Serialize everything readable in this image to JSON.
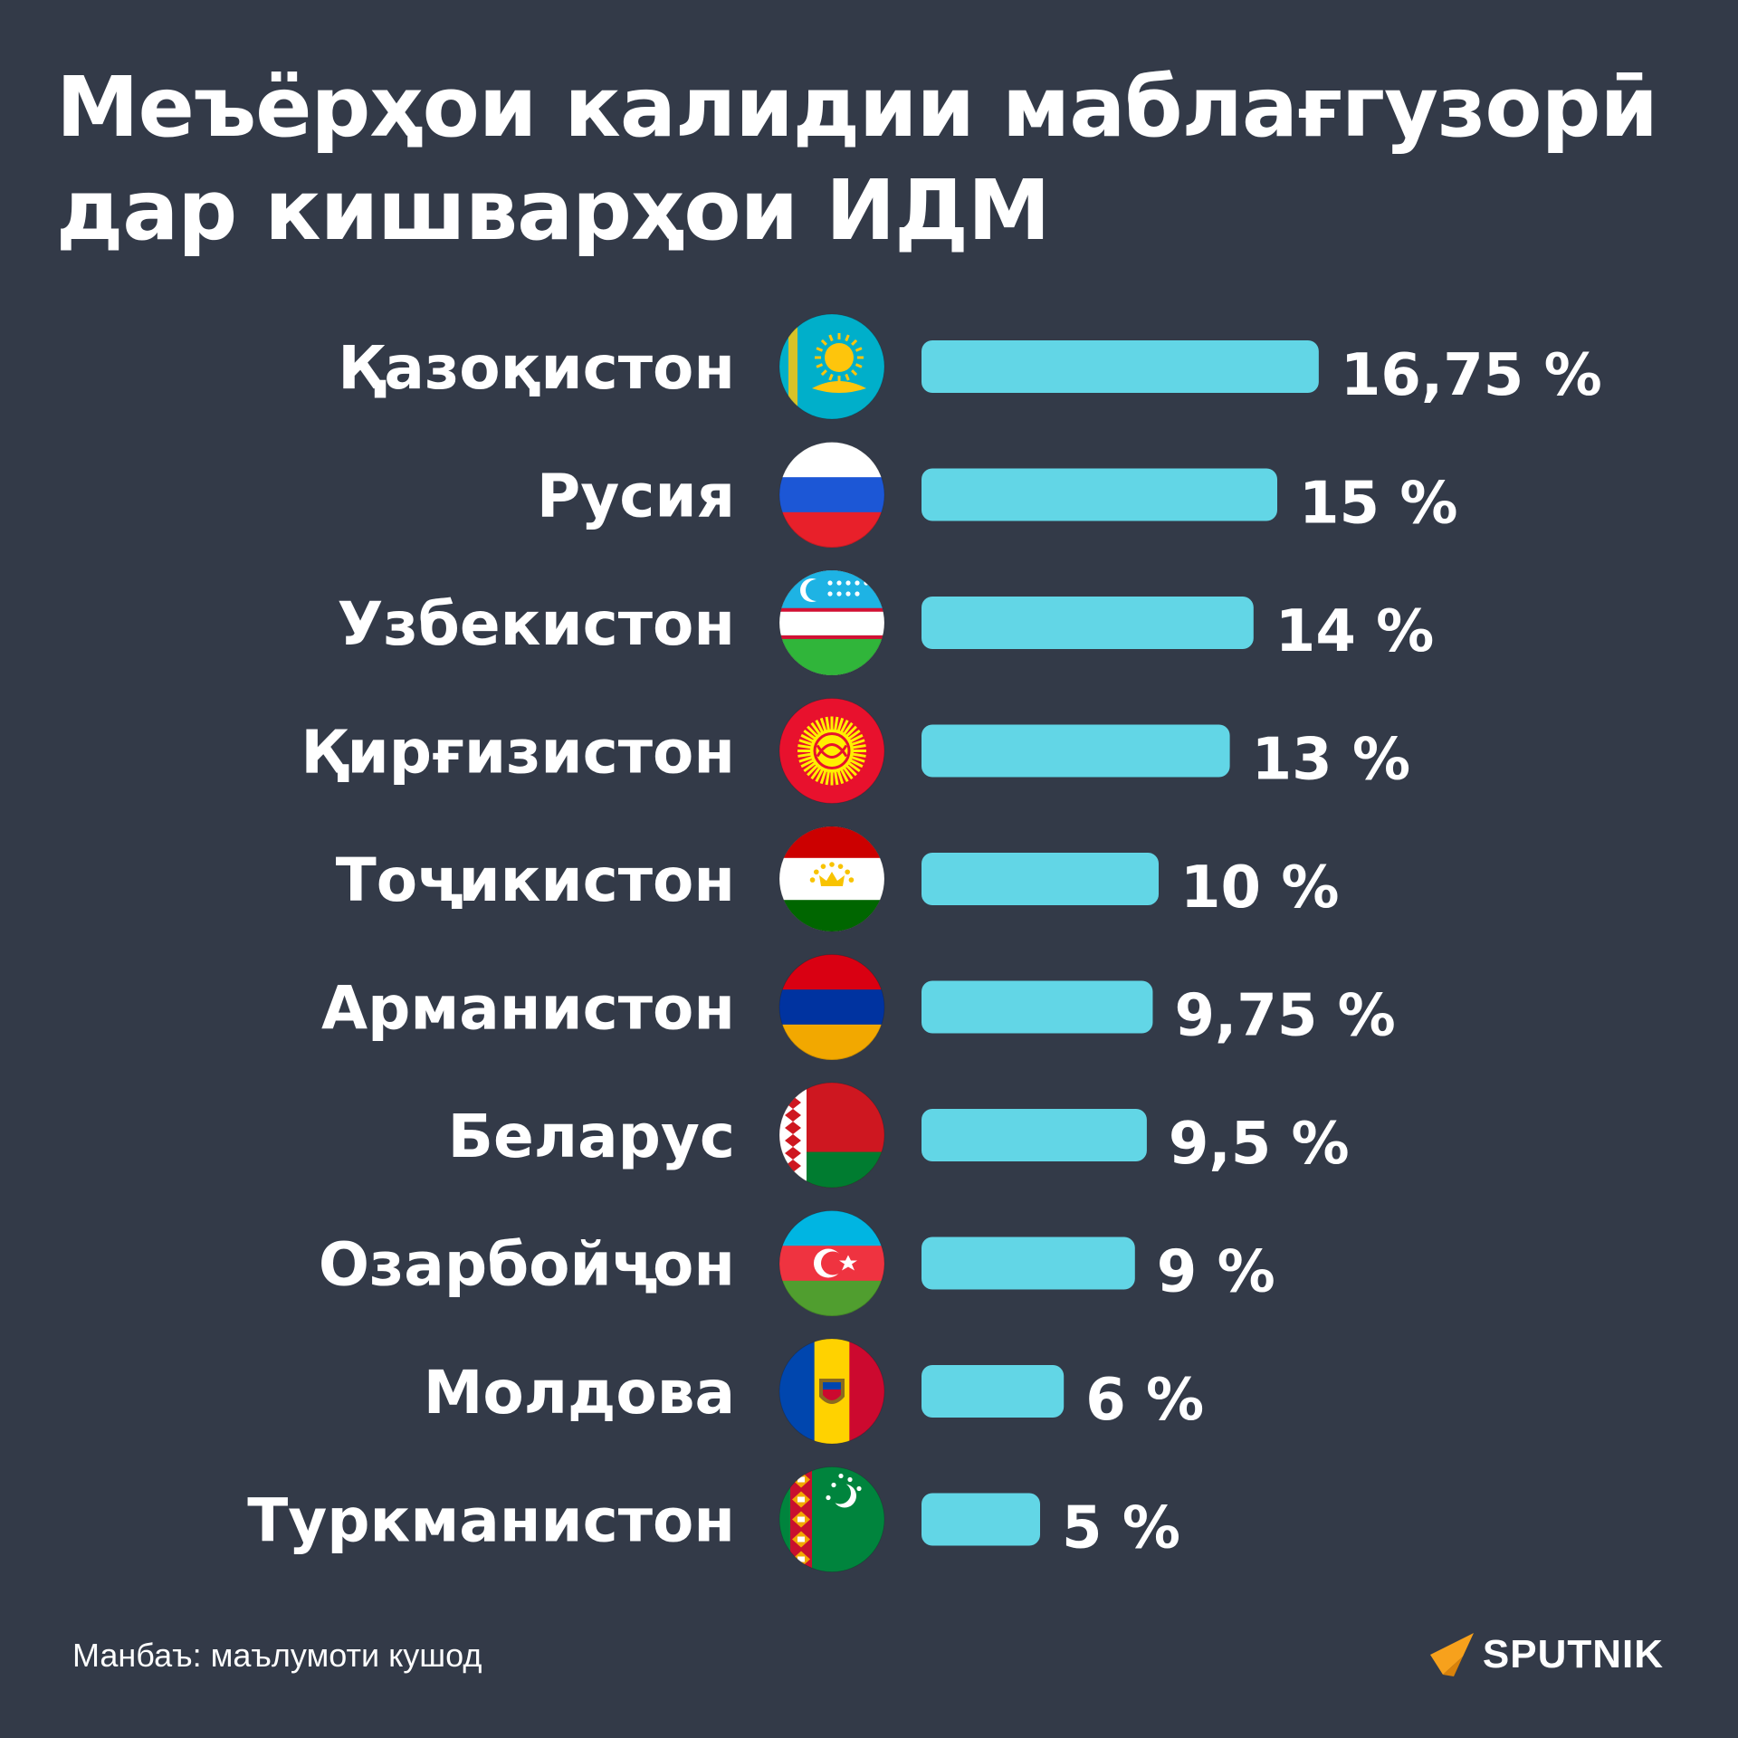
{
  "title_lines": [
    "Меъёрҳои калидии маблағгузорӣ",
    "дар кишварҳои ИДМ"
  ],
  "source": "Манбаъ: маълумоти кушод",
  "logo": "SPUTNIK",
  "colors": {
    "background": "#333a48",
    "bar": "#62d6e6",
    "text": "#ffffff",
    "logo_arrow": "#f7a11c"
  },
  "chart_data": {
    "type": "bar",
    "orientation": "horizontal",
    "title": "Меъёрҳои калидии маблағгузорӣ дар кишварҳои ИДМ",
    "categories": [
      "Қазоқистон",
      "Русия",
      "Узбекистон",
      "Қирғизистон",
      "Тоҷикистон",
      "Арманистон",
      "Беларус",
      "Озарбойҷон",
      "Молдова",
      "Туркманистон"
    ],
    "values": [
      16.75,
      15,
      14,
      13,
      10,
      9.75,
      9.5,
      9,
      6,
      5
    ],
    "value_labels": [
      "16,75 %",
      "15 %",
      "14 %",
      "13 %",
      "10 %",
      "9,75 %",
      "9,5 %",
      "9 %",
      "6 %",
      "5 %"
    ],
    "flags": [
      "kazakhstan-flag",
      "russia-flag",
      "uzbekistan-flag",
      "kyrgyzstan-flag",
      "tajikistan-flag",
      "armenia-flag",
      "belarus-flag",
      "azerbaijan-flag",
      "moldova-flag",
      "turkmenistan-flag"
    ],
    "xlabel": "",
    "ylabel": "",
    "grid": false,
    "legend": "none"
  }
}
